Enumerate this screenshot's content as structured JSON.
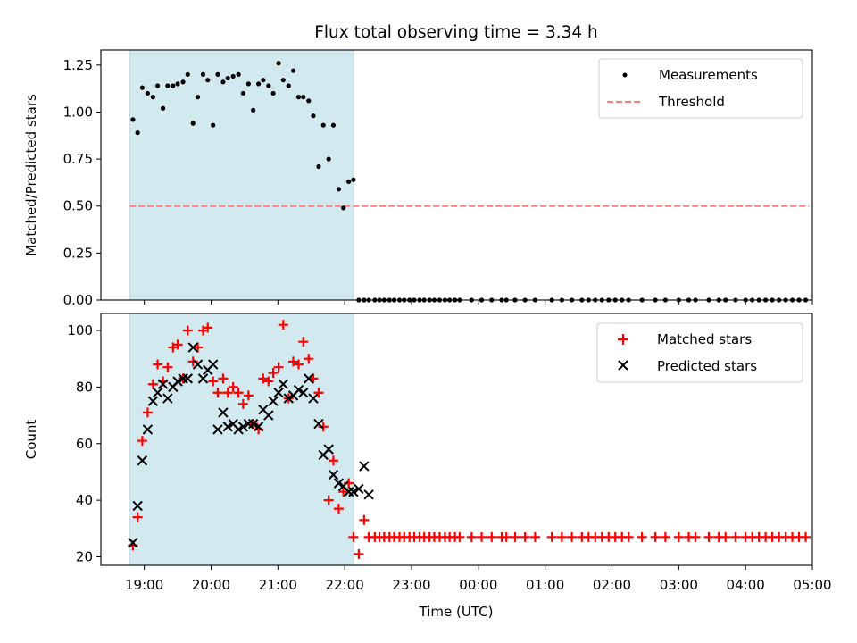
{
  "chart_data": {
    "title": "Flux total observing time = 3.34 h",
    "xlabel": "Time (UTC)",
    "x_units": "hours since 18:00 UTC",
    "xlim": [
      18.35,
      29.0
    ],
    "x_ticks": [
      {
        "value": 19,
        "label": "19:00"
      },
      {
        "value": 20,
        "label": "20:00"
      },
      {
        "value": 21,
        "label": "21:00"
      },
      {
        "value": 22,
        "label": "22:00"
      },
      {
        "value": 23,
        "label": "23:00"
      },
      {
        "value": 24,
        "label": "00:00"
      },
      {
        "value": 25,
        "label": "01:00"
      },
      {
        "value": 26,
        "label": "02:00"
      },
      {
        "value": 27,
        "label": "03:00"
      },
      {
        "value": 28,
        "label": "04:00"
      },
      {
        "value": 29,
        "label": "05:00"
      }
    ],
    "shaded_interval": [
      18.78,
      22.13
    ],
    "shade_color": "#d2e9f0",
    "panels": [
      {
        "type": "scatter",
        "ylabel": "Matched/Predicted stars",
        "ylim": [
          0,
          1.33
        ],
        "y_ticks": [
          {
            "value": 0,
            "label": "0.00"
          },
          {
            "value": 0.25,
            "label": "0.25"
          },
          {
            "value": 0.5,
            "label": "0.50"
          },
          {
            "value": 0.75,
            "label": "0.75"
          },
          {
            "value": 1.0,
            "label": "1.00"
          },
          {
            "value": 1.25,
            "label": "1.25"
          }
        ],
        "threshold": {
          "name": "Threshold",
          "value": 0.5,
          "x_range": [
            18.78,
            28.95
          ],
          "color": "#ff7a7a"
        },
        "series": [
          {
            "name": "Measurements",
            "marker": "dot",
            "color": "#000000",
            "x": [
              18.83,
              18.9,
              18.97,
              19.05,
              19.13,
              19.2,
              19.28,
              19.35,
              19.43,
              19.5,
              19.58,
              19.65,
              19.73,
              19.8,
              19.88,
              19.95,
              20.03,
              20.1,
              20.18,
              20.25,
              20.33,
              20.41,
              20.48,
              20.56,
              20.63,
              20.71,
              20.78,
              20.86,
              20.93,
              21.01,
              21.08,
              21.16,
              21.23,
              21.31,
              21.38,
              21.46,
              21.53,
              21.61,
              21.68,
              21.76,
              21.83,
              21.91,
              21.98,
              22.06,
              22.13,
              22.21,
              22.29,
              22.36,
              22.45,
              22.52,
              22.59,
              22.67,
              22.74,
              22.82,
              22.89,
              22.97,
              23.04,
              23.12,
              23.19,
              23.27,
              23.34,
              23.42,
              23.5,
              23.57,
              23.65,
              23.72,
              23.9,
              24.05,
              24.2,
              24.35,
              24.42,
              24.55,
              24.7,
              24.85,
              25.1,
              25.25,
              25.4,
              25.55,
              25.65,
              25.75,
              25.85,
              25.95,
              26.05,
              26.15,
              26.25,
              26.45,
              26.65,
              26.8,
              27.0,
              27.15,
              27.25,
              27.45,
              27.6,
              27.7,
              27.85,
              28.0,
              28.1,
              28.2,
              28.3,
              28.4,
              28.5,
              28.6,
              28.7,
              28.8,
              28.9
            ],
            "y": [
              0.96,
              0.89,
              1.13,
              1.1,
              1.08,
              1.14,
              1.02,
              1.14,
              1.14,
              1.15,
              1.16,
              1.2,
              0.94,
              1.08,
              1.2,
              1.17,
              0.93,
              1.2,
              1.16,
              1.18,
              1.19,
              1.2,
              1.1,
              1.15,
              1.01,
              1.15,
              1.17,
              1.14,
              1.1,
              1.26,
              1.17,
              1.14,
              1.22,
              1.08,
              1.08,
              1.06,
              0.98,
              0.71,
              0.93,
              0.75,
              0.93,
              0.59,
              0.49,
              0.63,
              0.64,
              0,
              0,
              0,
              0,
              0,
              0,
              0,
              0,
              0,
              0,
              0,
              0,
              0,
              0,
              0,
              0,
              0,
              0,
              0,
              0,
              0,
              0,
              0,
              0,
              0,
              0,
              0,
              0,
              0,
              0,
              0,
              0,
              0,
              0,
              0,
              0,
              0,
              0,
              0,
              0,
              0,
              0,
              0,
              0,
              0,
              0,
              0,
              0,
              0,
              0,
              0,
              0,
              0,
              0,
              0,
              0,
              0,
              0,
              0,
              0
            ]
          }
        ]
      },
      {
        "type": "scatter",
        "ylabel": "Count",
        "ylim": [
          17,
          106
        ],
        "y_ticks": [
          {
            "value": 20,
            "label": "20"
          },
          {
            "value": 40,
            "label": "40"
          },
          {
            "value": 60,
            "label": "60"
          },
          {
            "value": 80,
            "label": "80"
          },
          {
            "value": 100,
            "label": "100"
          }
        ],
        "series": [
          {
            "name": "Matched stars",
            "marker": "plus",
            "color": "#ff0000",
            "x": [
              18.83,
              18.9,
              18.97,
              19.05,
              19.13,
              19.2,
              19.28,
              19.35,
              19.43,
              19.5,
              19.58,
              19.65,
              19.73,
              19.8,
              19.88,
              19.95,
              20.03,
              20.1,
              20.18,
              20.25,
              20.33,
              20.41,
              20.48,
              20.56,
              20.63,
              20.71,
              20.78,
              20.86,
              20.93,
              21.01,
              21.08,
              21.16,
              21.23,
              21.31,
              21.38,
              21.46,
              21.53,
              21.61,
              21.68,
              21.76,
              21.83,
              21.91,
              21.98,
              22.06,
              22.13,
              22.21,
              22.29,
              22.36,
              22.45,
              22.52,
              22.59,
              22.67,
              22.74,
              22.82,
              22.89,
              22.97,
              23.04,
              23.12,
              23.19,
              23.27,
              23.34,
              23.42,
              23.5,
              23.57,
              23.65,
              23.72,
              23.9,
              24.05,
              24.2,
              24.35,
              24.42,
              24.55,
              24.7,
              24.85,
              25.1,
              25.25,
              25.4,
              25.55,
              25.65,
              25.75,
              25.85,
              25.95,
              26.05,
              26.15,
              26.25,
              26.45,
              26.65,
              26.8,
              27.0,
              27.15,
              27.25,
              27.45,
              27.6,
              27.7,
              27.85,
              28.0,
              28.1,
              28.2,
              28.3,
              28.4,
              28.5,
              28.6,
              28.7,
              28.8,
              28.9
            ],
            "y": [
              24,
              34,
              61,
              71,
              81,
              88,
              82,
              87,
              94,
              95,
              83,
              100,
              89,
              94,
              100,
              101,
              82,
              78,
              83,
              78,
              80,
              78,
              74,
              77,
              67,
              65,
              83,
              82,
              85,
              87,
              102,
              76,
              89,
              88,
              96,
              90,
              83,
              78,
              66,
              40,
              54,
              37,
              43,
              46,
              27,
              21,
              33,
              27,
              27,
              27,
              27,
              27,
              27,
              27,
              27,
              27,
              27,
              27,
              27,
              27,
              27,
              27,
              27,
              27,
              27,
              27,
              27,
              27,
              27,
              27,
              27,
              27,
              27,
              27,
              27,
              27,
              27,
              27,
              27,
              27,
              27,
              27,
              27,
              27,
              27,
              27,
              27,
              27,
              27,
              27,
              27,
              27,
              27,
              27,
              27,
              27,
              27,
              27,
              27,
              27,
              27,
              27,
              27,
              27,
              27
            ]
          },
          {
            "name": "Predicted stars",
            "marker": "x",
            "color": "#000000",
            "x": [
              18.83,
              18.9,
              18.97,
              19.05,
              19.13,
              19.2,
              19.28,
              19.35,
              19.43,
              19.5,
              19.58,
              19.65,
              19.73,
              19.8,
              19.88,
              19.95,
              20.03,
              20.1,
              20.18,
              20.25,
              20.33,
              20.41,
              20.48,
              20.56,
              20.63,
              20.71,
              20.78,
              20.86,
              20.93,
              21.01,
              21.08,
              21.16,
              21.23,
              21.31,
              21.38,
              21.46,
              21.53,
              21.61,
              21.68,
              21.76,
              21.83,
              21.91,
              21.98,
              22.06,
              22.13,
              22.21,
              22.29,
              22.36
            ],
            "y": [
              25,
              38,
              54,
              65,
              75,
              78,
              81,
              76,
              80,
              82,
              83,
              83,
              94,
              88,
              83,
              86,
              88,
              65,
              71,
              66,
              67,
              65,
              66,
              67,
              67,
              66,
              72,
              70,
              75,
              78,
              81,
              76,
              77,
              79,
              78,
              83,
              76,
              67,
              56,
              58,
              49,
              46,
              45,
              43,
              43,
              44,
              52,
              42
            ]
          }
        ]
      }
    ]
  }
}
